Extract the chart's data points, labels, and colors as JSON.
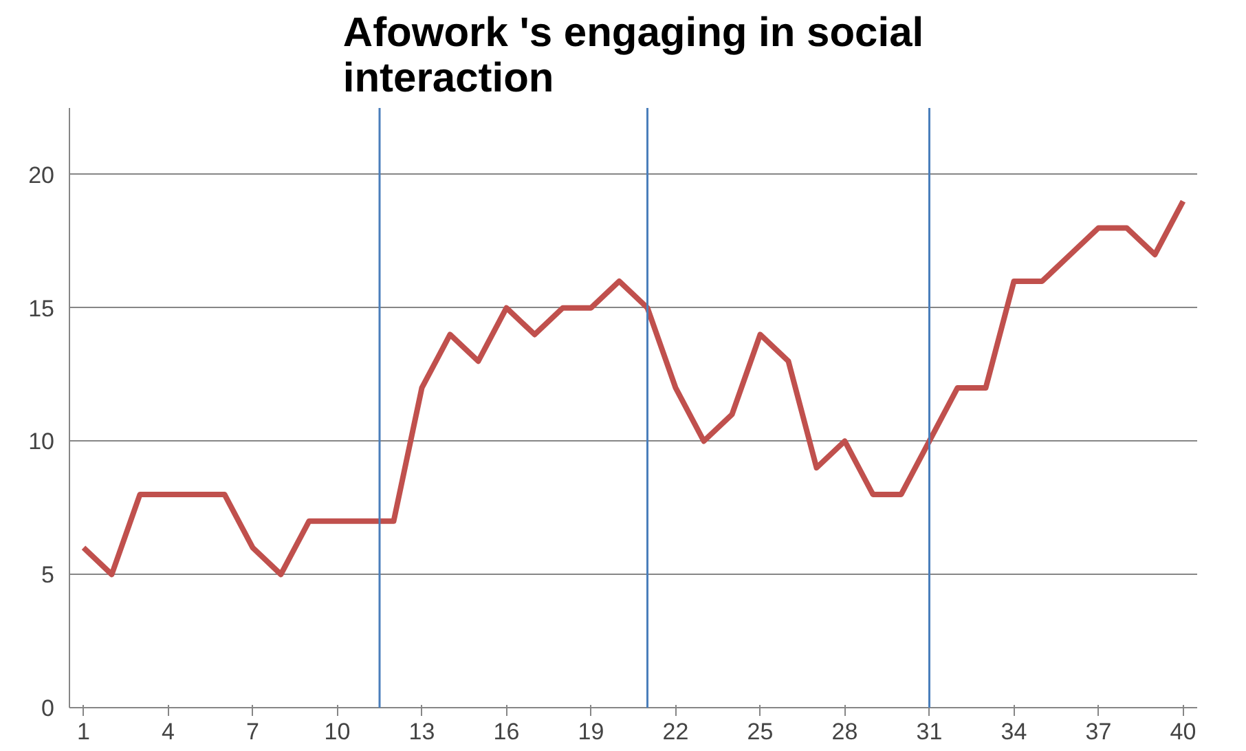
{
  "chart_data": {
    "type": "line",
    "title": "Afowork 's engaging in social interaction",
    "x": [
      1,
      2,
      3,
      4,
      5,
      6,
      7,
      8,
      9,
      10,
      11,
      12,
      13,
      14,
      15,
      16,
      17,
      18,
      19,
      20,
      21,
      22,
      23,
      24,
      25,
      26,
      27,
      28,
      29,
      30,
      31,
      32,
      33,
      34,
      35,
      36,
      37,
      38,
      39,
      40
    ],
    "series": [
      {
        "color": "#c0504d",
        "values": [
          6,
          5,
          8,
          8,
          8,
          8,
          6,
          5,
          7,
          7,
          7,
          7,
          12,
          14,
          13,
          15,
          14,
          15,
          15,
          16,
          15,
          12,
          10,
          11,
          14,
          13,
          9,
          10,
          8,
          8,
          10,
          12,
          12,
          16,
          16,
          17,
          18,
          18,
          17,
          19
        ]
      }
    ],
    "xlim": [
      0.5,
      40.5
    ],
    "xticks": [
      1,
      4,
      7,
      10,
      13,
      16,
      19,
      22,
      25,
      28,
      31,
      34,
      37,
      40
    ],
    "ylim": [
      0,
      22.5
    ],
    "yticks": [
      0,
      5,
      10,
      15,
      20
    ],
    "ref_lines": [
      {
        "axis": "x",
        "value": 11.5,
        "color": "#4a7ebb"
      },
      {
        "axis": "x",
        "value": 21,
        "color": "#4a7ebb"
      },
      {
        "axis": "x",
        "value": 31,
        "color": "#4a7ebb"
      }
    ],
    "grid": "y",
    "marker": "none",
    "line_style": "solid"
  }
}
